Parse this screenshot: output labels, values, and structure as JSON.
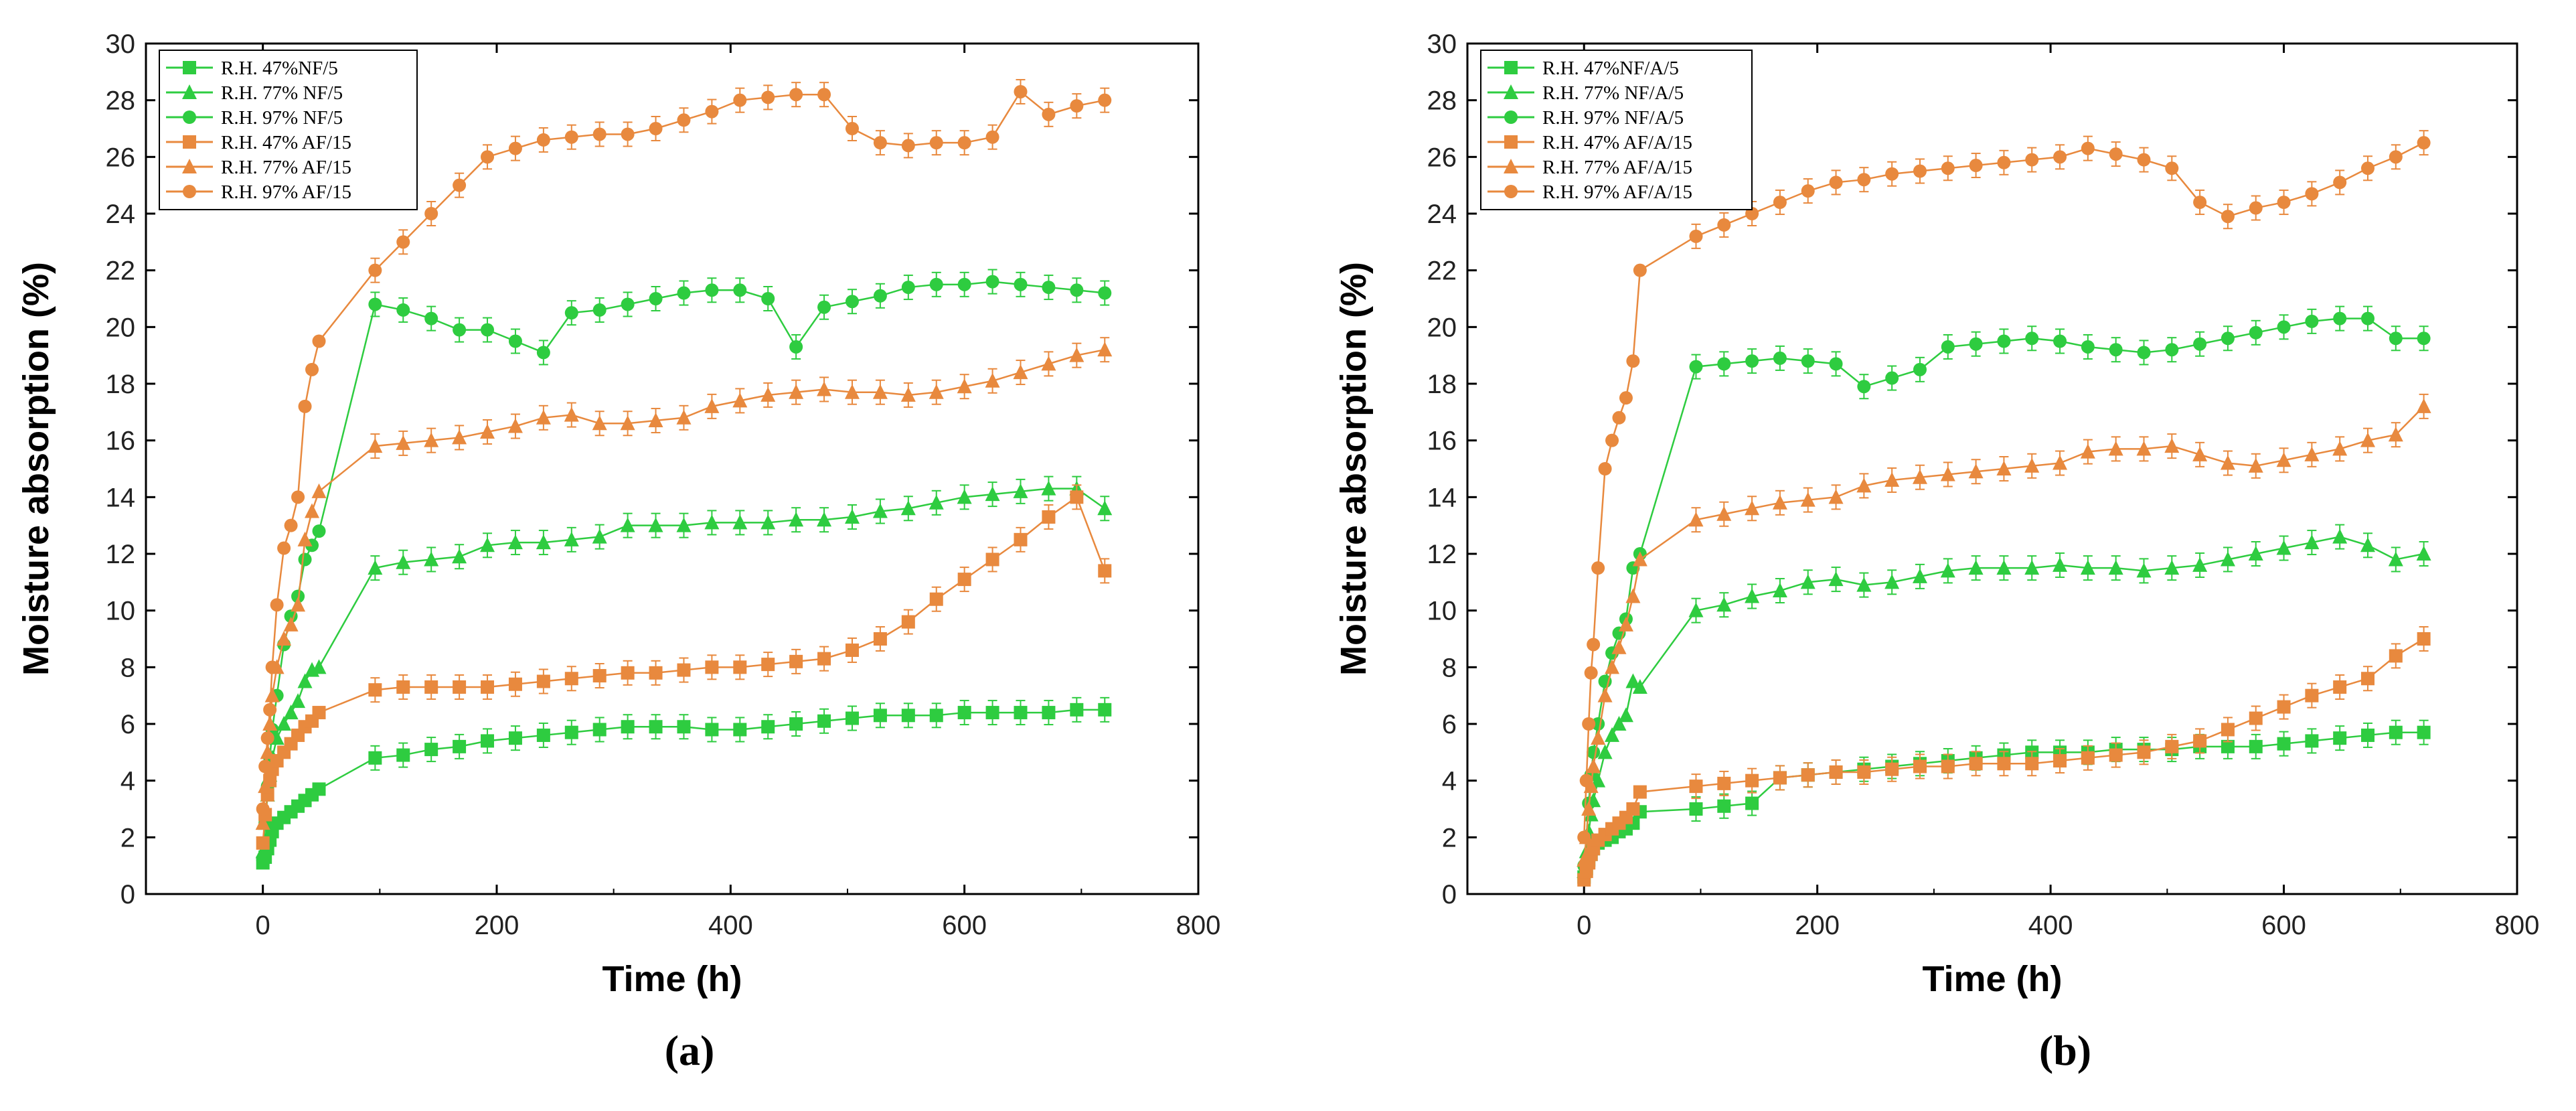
{
  "colors": {
    "green": "#2ecc40",
    "orange": "#e8893e",
    "axis": "#000000"
  },
  "chart_data": [
    {
      "type": "line",
      "panel_label": "(a)",
      "xlabel": "Time (h)",
      "ylabel": "Moisture absorption (%)",
      "xlim": [
        -100,
        800
      ],
      "ylim": [
        0,
        30
      ],
      "xticks": [
        0,
        200,
        400,
        600,
        800
      ],
      "yticks": [
        0,
        2,
        4,
        6,
        8,
        10,
        12,
        14,
        16,
        18,
        20,
        22,
        24,
        26,
        28,
        30
      ],
      "legend_position": "top-left",
      "series": [
        {
          "name": "R.H. 47%NF/5",
          "color": "green",
          "marker": "square",
          "x": [
            0,
            2,
            4,
            6,
            8,
            12,
            18,
            24,
            30,
            36,
            42,
            48,
            96,
            120,
            144,
            168,
            192,
            216,
            240,
            264,
            288,
            312,
            336,
            360,
            384,
            408,
            432,
            456,
            480,
            504,
            528,
            552,
            576,
            600,
            624,
            648,
            672,
            696,
            720
          ],
          "y": [
            1.1,
            1.3,
            1.6,
            1.9,
            2.2,
            2.5,
            2.7,
            2.9,
            3.1,
            3.3,
            3.5,
            3.7,
            4.8,
            4.9,
            5.1,
            5.2,
            5.4,
            5.5,
            5.6,
            5.7,
            5.8,
            5.9,
            5.9,
            5.9,
            5.8,
            5.8,
            5.9,
            6.0,
            6.1,
            6.2,
            6.3,
            6.3,
            6.3,
            6.4,
            6.4,
            6.4,
            6.4,
            6.5,
            6.5
          ]
        },
        {
          "name": "R.H. 77% NF/5",
          "color": "green",
          "marker": "triangle",
          "x": [
            0,
            2,
            4,
            6,
            8,
            12,
            18,
            24,
            30,
            36,
            42,
            48,
            96,
            120,
            144,
            168,
            192,
            216,
            240,
            264,
            288,
            312,
            336,
            360,
            384,
            408,
            432,
            456,
            480,
            504,
            528,
            552,
            576,
            600,
            624,
            648,
            672,
            696,
            720
          ],
          "y": [
            1.5,
            2.5,
            3.5,
            4.2,
            4.8,
            5.5,
            6.0,
            6.4,
            6.8,
            7.5,
            7.9,
            8.0,
            11.5,
            11.7,
            11.8,
            11.9,
            12.3,
            12.4,
            12.4,
            12.5,
            12.6,
            13.0,
            13.0,
            13.0,
            13.1,
            13.1,
            13.1,
            13.2,
            13.2,
            13.3,
            13.5,
            13.6,
            13.8,
            14.0,
            14.1,
            14.2,
            14.3,
            14.3,
            13.6
          ]
        },
        {
          "name": "R.H. 97% NF/5",
          "color": "green",
          "marker": "circle",
          "x": [
            0,
            2,
            4,
            6,
            8,
            12,
            18,
            24,
            30,
            36,
            42,
            48,
            96,
            120,
            144,
            168,
            192,
            216,
            240,
            264,
            288,
            312,
            336,
            360,
            384,
            408,
            432,
            456,
            480,
            504,
            528,
            552,
            576,
            600,
            624,
            648,
            672,
            696,
            720
          ],
          "y": [
            1.2,
            2.5,
            3.8,
            4.8,
            5.8,
            7.0,
            8.8,
            9.8,
            10.5,
            11.8,
            12.3,
            12.8,
            20.8,
            20.6,
            20.3,
            19.9,
            19.9,
            19.5,
            19.1,
            20.5,
            20.6,
            20.8,
            21.0,
            21.2,
            21.3,
            21.3,
            21.0,
            19.3,
            20.7,
            20.9,
            21.1,
            21.4,
            21.5,
            21.5,
            21.6,
            21.5,
            21.4,
            21.3,
            21.2
          ]
        },
        {
          "name": "R.H. 47% AF/15",
          "color": "orange",
          "marker": "square",
          "x": [
            0,
            2,
            4,
            6,
            8,
            12,
            18,
            24,
            30,
            36,
            42,
            48,
            96,
            120,
            144,
            168,
            192,
            216,
            240,
            264,
            288,
            312,
            336,
            360,
            384,
            408,
            432,
            456,
            480,
            504,
            528,
            552,
            576,
            600,
            624,
            648,
            672,
            696,
            720
          ],
          "y": [
            1.8,
            2.8,
            3.5,
            4.0,
            4.4,
            4.7,
            5.0,
            5.3,
            5.6,
            5.9,
            6.1,
            6.4,
            7.2,
            7.3,
            7.3,
            7.3,
            7.3,
            7.4,
            7.5,
            7.6,
            7.7,
            7.8,
            7.8,
            7.9,
            8.0,
            8.0,
            8.1,
            8.2,
            8.3,
            8.6,
            9.0,
            9.6,
            10.4,
            11.1,
            11.8,
            12.5,
            13.3,
            14.0,
            11.4
          ]
        },
        {
          "name": "R.H. 77% AF/15",
          "color": "orange",
          "marker": "triangle",
          "x": [
            0,
            2,
            4,
            6,
            8,
            12,
            18,
            24,
            30,
            36,
            42,
            48,
            96,
            120,
            144,
            168,
            192,
            216,
            240,
            264,
            288,
            312,
            336,
            360,
            384,
            408,
            432,
            456,
            480,
            504,
            528,
            552,
            576,
            600,
            624,
            648,
            672,
            696,
            720
          ],
          "y": [
            2.5,
            3.8,
            5.0,
            6.0,
            7.0,
            8.0,
            9.0,
            9.5,
            10.2,
            12.5,
            13.5,
            14.2,
            15.8,
            15.9,
            16.0,
            16.1,
            16.3,
            16.5,
            16.8,
            16.9,
            16.6,
            16.6,
            16.7,
            16.8,
            17.2,
            17.4,
            17.6,
            17.7,
            17.8,
            17.7,
            17.7,
            17.6,
            17.7,
            17.9,
            18.1,
            18.4,
            18.7,
            19.0,
            19.2
          ]
        },
        {
          "name": "R.H. 97% AF/15",
          "color": "orange",
          "marker": "circle",
          "x": [
            0,
            2,
            4,
            6,
            8,
            12,
            18,
            24,
            30,
            36,
            42,
            48,
            96,
            120,
            144,
            168,
            192,
            216,
            240,
            264,
            288,
            312,
            336,
            360,
            384,
            408,
            432,
            456,
            480,
            504,
            528,
            552,
            576,
            600,
            624,
            648,
            672,
            696,
            720
          ],
          "y": [
            3.0,
            4.5,
            5.5,
            6.5,
            8.0,
            10.2,
            12.2,
            13.0,
            14.0,
            17.2,
            18.5,
            19.5,
            22.0,
            23.0,
            24.0,
            25.0,
            26.0,
            26.3,
            26.6,
            26.7,
            26.8,
            26.8,
            27.0,
            27.3,
            27.6,
            28.0,
            28.1,
            28.2,
            28.2,
            27.0,
            26.5,
            26.4,
            26.5,
            26.5,
            26.7,
            28.3,
            27.5,
            27.8,
            28.0
          ]
        }
      ]
    },
    {
      "type": "line",
      "panel_label": "(b)",
      "xlabel": "Time (h)",
      "ylabel": "Moisture absorption (%)",
      "xlim": [
        -100,
        800
      ],
      "ylim": [
        0,
        30
      ],
      "xticks": [
        0,
        200,
        400,
        600,
        800
      ],
      "yticks": [
        0,
        2,
        4,
        6,
        8,
        10,
        12,
        14,
        16,
        18,
        20,
        22,
        24,
        26,
        28,
        30
      ],
      "legend_position": "top-left",
      "series": [
        {
          "name": "R.H. 47%NF/A/5",
          "color": "green",
          "marker": "square",
          "x": [
            0,
            2,
            4,
            6,
            8,
            12,
            18,
            24,
            30,
            36,
            42,
            48,
            96,
            120,
            144,
            168,
            192,
            216,
            240,
            264,
            288,
            312,
            336,
            360,
            384,
            408,
            432,
            456,
            480,
            504,
            528,
            552,
            576,
            600,
            624,
            648,
            672,
            696,
            720
          ],
          "y": [
            0.6,
            0.9,
            1.2,
            1.4,
            1.6,
            1.8,
            1.9,
            2.0,
            2.2,
            2.3,
            2.5,
            2.9,
            3.0,
            3.1,
            3.2,
            4.1,
            4.2,
            4.3,
            4.4,
            4.5,
            4.6,
            4.7,
            4.8,
            4.9,
            5.0,
            5.0,
            5.0,
            5.1,
            5.1,
            5.1,
            5.2,
            5.2,
            5.2,
            5.3,
            5.4,
            5.5,
            5.6,
            5.7,
            5.7
          ]
        },
        {
          "name": "R.H. 77% NF/A/5",
          "color": "green",
          "marker": "triangle",
          "x": [
            0,
            2,
            4,
            6,
            8,
            12,
            18,
            24,
            30,
            36,
            42,
            48,
            96,
            120,
            144,
            168,
            192,
            216,
            240,
            264,
            288,
            312,
            336,
            360,
            384,
            408,
            432,
            456,
            480,
            504,
            528,
            552,
            576,
            600,
            624,
            648,
            672,
            696,
            720
          ],
          "y": [
            0.8,
            1.5,
            2.2,
            2.8,
            3.3,
            4.0,
            5.0,
            5.6,
            6.0,
            6.3,
            7.5,
            7.3,
            10.0,
            10.2,
            10.5,
            10.7,
            11.0,
            11.1,
            10.9,
            11.0,
            11.2,
            11.4,
            11.5,
            11.5,
            11.5,
            11.6,
            11.5,
            11.5,
            11.4,
            11.5,
            11.6,
            11.8,
            12.0,
            12.2,
            12.4,
            12.6,
            12.3,
            11.8,
            12.0
          ]
        },
        {
          "name": "R.H. 97% NF/A/5",
          "color": "green",
          "marker": "circle",
          "x": [
            0,
            2,
            4,
            6,
            8,
            12,
            18,
            24,
            30,
            36,
            42,
            48,
            96,
            120,
            144,
            168,
            192,
            216,
            240,
            264,
            288,
            312,
            336,
            360,
            384,
            408,
            432,
            456,
            480,
            504,
            528,
            552,
            576,
            600,
            624,
            648,
            672,
            696,
            720
          ],
          "y": [
            1.0,
            2.0,
            3.2,
            4.2,
            5.0,
            6.0,
            7.5,
            8.5,
            9.2,
            9.7,
            11.5,
            12.0,
            18.6,
            18.7,
            18.8,
            18.9,
            18.8,
            18.7,
            17.9,
            18.2,
            18.5,
            19.3,
            19.4,
            19.5,
            19.6,
            19.5,
            19.3,
            19.2,
            19.1,
            19.2,
            19.4,
            19.6,
            19.8,
            20.0,
            20.2,
            20.3,
            20.3,
            19.6,
            19.6
          ]
        },
        {
          "name": "R.H. 47% AF/A/15",
          "color": "orange",
          "marker": "square",
          "x": [
            0,
            2,
            4,
            6,
            8,
            12,
            18,
            24,
            30,
            36,
            42,
            48,
            96,
            120,
            144,
            168,
            192,
            216,
            240,
            264,
            288,
            312,
            336,
            360,
            384,
            408,
            432,
            456,
            480,
            504,
            528,
            552,
            576,
            600,
            624,
            648,
            672,
            696,
            720
          ],
          "y": [
            0.5,
            0.8,
            1.1,
            1.4,
            1.6,
            1.9,
            2.1,
            2.3,
            2.5,
            2.7,
            3.0,
            3.6,
            3.8,
            3.9,
            4.0,
            4.1,
            4.2,
            4.3,
            4.3,
            4.4,
            4.5,
            4.5,
            4.6,
            4.6,
            4.6,
            4.7,
            4.8,
            4.9,
            5.0,
            5.2,
            5.4,
            5.8,
            6.2,
            6.6,
            7.0,
            7.3,
            7.6,
            8.4,
            9.0
          ]
        },
        {
          "name": "R.H. 77% AF/A/15",
          "color": "orange",
          "marker": "triangle",
          "x": [
            0,
            2,
            4,
            6,
            8,
            12,
            18,
            24,
            30,
            36,
            42,
            48,
            96,
            120,
            144,
            168,
            192,
            216,
            240,
            264,
            288,
            312,
            336,
            360,
            384,
            408,
            432,
            456,
            480,
            504,
            528,
            552,
            576,
            600,
            624,
            648,
            672,
            696,
            720
          ],
          "y": [
            1.2,
            2.0,
            3.0,
            3.8,
            4.5,
            5.5,
            7.0,
            8.0,
            8.7,
            9.5,
            10.5,
            11.8,
            13.2,
            13.4,
            13.6,
            13.8,
            13.9,
            14.0,
            14.4,
            14.6,
            14.7,
            14.8,
            14.9,
            15.0,
            15.1,
            15.2,
            15.6,
            15.7,
            15.7,
            15.8,
            15.5,
            15.2,
            15.1,
            15.3,
            15.5,
            15.7,
            16.0,
            16.2,
            17.2
          ]
        },
        {
          "name": "R.H. 97% AF/A/15",
          "color": "orange",
          "marker": "circle",
          "x": [
            0,
            2,
            4,
            6,
            8,
            12,
            18,
            24,
            30,
            36,
            42,
            48,
            96,
            120,
            144,
            168,
            192,
            216,
            240,
            264,
            288,
            312,
            336,
            360,
            384,
            408,
            432,
            456,
            480,
            504,
            528,
            552,
            576,
            600,
            624,
            648,
            672,
            696,
            720
          ],
          "y": [
            2.0,
            4.0,
            6.0,
            7.8,
            8.8,
            11.5,
            15.0,
            16.0,
            16.8,
            17.5,
            18.8,
            22.0,
            23.2,
            23.6,
            24.0,
            24.4,
            24.8,
            25.1,
            25.2,
            25.4,
            25.5,
            25.6,
            25.7,
            25.8,
            25.9,
            26.0,
            26.3,
            26.1,
            25.9,
            25.6,
            24.4,
            23.9,
            24.2,
            24.4,
            24.7,
            25.1,
            25.6,
            26.0,
            26.5
          ]
        }
      ]
    }
  ]
}
